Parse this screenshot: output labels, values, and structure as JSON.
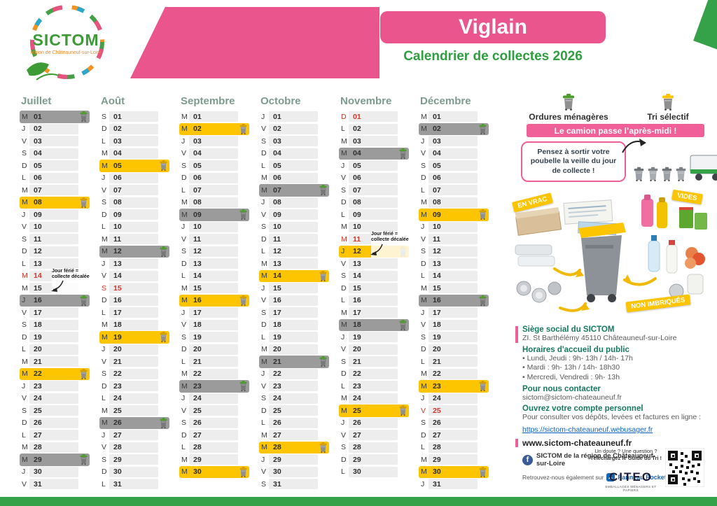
{
  "header": {
    "logo_title": "SICTOM",
    "logo_subtitle": "région de Châteauneuf-sur-Loire",
    "commune": "Viglain",
    "subtitle": "Calendrier de collectes 2026"
  },
  "legend": {
    "gray_label": "Ordures ménagères",
    "yellow_label": "Tri sélectif",
    "banner": "Le camion passe l’après-midi !",
    "reminder": "Pensez à sortir votre poubelle la veille du jour de collecte !"
  },
  "illustration": {
    "badges": [
      "EN VRAC",
      "VIDES",
      "NON IMBRIQUÉS"
    ]
  },
  "note_text": "Jour férié = collecte décalée",
  "contact": {
    "hq_title": "Siège social du SICTOM",
    "hq_address": "ZI. St Barthélémy 45110 Châteauneuf-sur-Loire",
    "hours_title": "Horaires d'accueil du public",
    "hours": [
      "• Lundi, Jeudi : 9h- 13h / 14h- 17h",
      "• Mardi : 9h- 13h / 14h- 18h30",
      "• Mercredi, Vendredi : 9h- 13h"
    ],
    "contact_title": "Pour nous contacter",
    "email": "sictom@sictom-chateauneuf.fr",
    "account_title": "Ouvrez votre compte personnel",
    "account_text": "Pour consulter vos dépôts, levées et factures en ligne :",
    "account_url": "https://sictom-chateauneuf.webusager.fr"
  },
  "footer": {
    "website": "www.sictom-chateauneuf.fr",
    "facebook": "SICTOM de la région de Châteauneuf-sur-Loire",
    "also_on": "Retrouvez-nous également sur",
    "panneau": "Panneau Pocket",
    "doubt": "Un doute ? Une question ?",
    "download": "Téléchargez le Guide du Tri !",
    "citeo": "CITEO",
    "citeo_sub": "EMBALLAGES MÉNAGERS ET PAPIERS"
  },
  "colors": {
    "pink": "#e9558c",
    "green": "#2f9e3f",
    "yellow": "#fdc400",
    "gray_highlight": "#9b9b9b",
    "light_row": "#ededed",
    "holiday_red": "#d63426",
    "bottom_green": "#35a24a"
  },
  "months": [
    {
      "name": "Juillet",
      "note_row": 13,
      "days": [
        [
          "M",
          "01",
          "g"
        ],
        [
          "J",
          "02",
          ""
        ],
        [
          "V",
          "03",
          ""
        ],
        [
          "S",
          "04",
          ""
        ],
        [
          "D",
          "05",
          ""
        ],
        [
          "L",
          "06",
          ""
        ],
        [
          "M",
          "07",
          ""
        ],
        [
          "M",
          "08",
          "y"
        ],
        [
          "J",
          "09",
          ""
        ],
        [
          "V",
          "10",
          ""
        ],
        [
          "S",
          "11",
          ""
        ],
        [
          "D",
          "12",
          ""
        ],
        [
          "L",
          "13",
          ""
        ],
        [
          "M",
          "14",
          "r"
        ],
        [
          "M",
          "15",
          ""
        ],
        [
          "J",
          "16",
          "g"
        ],
        [
          "V",
          "17",
          ""
        ],
        [
          "S",
          "18",
          ""
        ],
        [
          "D",
          "19",
          ""
        ],
        [
          "L",
          "20",
          ""
        ],
        [
          "M",
          "21",
          ""
        ],
        [
          "M",
          "22",
          "y"
        ],
        [
          "J",
          "23",
          ""
        ],
        [
          "V",
          "24",
          ""
        ],
        [
          "S",
          "25",
          ""
        ],
        [
          "D",
          "26",
          ""
        ],
        [
          "L",
          "27",
          ""
        ],
        [
          "M",
          "28",
          ""
        ],
        [
          "M",
          "29",
          "g"
        ],
        [
          "J",
          "30",
          ""
        ],
        [
          "V",
          "31",
          ""
        ]
      ]
    },
    {
      "name": "Août",
      "days": [
        [
          "S",
          "01",
          ""
        ],
        [
          "D",
          "02",
          ""
        ],
        [
          "L",
          "03",
          ""
        ],
        [
          "M",
          "04",
          ""
        ],
        [
          "M",
          "05",
          "y"
        ],
        [
          "J",
          "06",
          ""
        ],
        [
          "V",
          "07",
          ""
        ],
        [
          "S",
          "08",
          ""
        ],
        [
          "D",
          "09",
          ""
        ],
        [
          "L",
          "10",
          ""
        ],
        [
          "M",
          "11",
          ""
        ],
        [
          "M",
          "12",
          "g"
        ],
        [
          "J",
          "13",
          ""
        ],
        [
          "V",
          "14",
          ""
        ],
        [
          "S",
          "15",
          "r"
        ],
        [
          "D",
          "16",
          ""
        ],
        [
          "L",
          "17",
          ""
        ],
        [
          "M",
          "18",
          ""
        ],
        [
          "M",
          "19",
          "y"
        ],
        [
          "J",
          "20",
          ""
        ],
        [
          "V",
          "21",
          ""
        ],
        [
          "S",
          "22",
          ""
        ],
        [
          "D",
          "23",
          ""
        ],
        [
          "L",
          "24",
          ""
        ],
        [
          "M",
          "25",
          ""
        ],
        [
          "M",
          "26",
          "g"
        ],
        [
          "J",
          "27",
          ""
        ],
        [
          "V",
          "28",
          ""
        ],
        [
          "S",
          "29",
          ""
        ],
        [
          "D",
          "30",
          ""
        ],
        [
          "L",
          "31",
          ""
        ]
      ]
    },
    {
      "name": "Septembre",
      "days": [
        [
          "M",
          "01",
          ""
        ],
        [
          "M",
          "02",
          "y"
        ],
        [
          "J",
          "03",
          ""
        ],
        [
          "V",
          "04",
          ""
        ],
        [
          "S",
          "05",
          ""
        ],
        [
          "D",
          "06",
          ""
        ],
        [
          "L",
          "07",
          ""
        ],
        [
          "M",
          "08",
          ""
        ],
        [
          "M",
          "09",
          "g"
        ],
        [
          "J",
          "10",
          ""
        ],
        [
          "V",
          "11",
          ""
        ],
        [
          "S",
          "12",
          ""
        ],
        [
          "D",
          "13",
          ""
        ],
        [
          "L",
          "14",
          ""
        ],
        [
          "M",
          "15",
          ""
        ],
        [
          "M",
          "16",
          "y"
        ],
        [
          "J",
          "17",
          ""
        ],
        [
          "V",
          "18",
          ""
        ],
        [
          "S",
          "19",
          ""
        ],
        [
          "D",
          "20",
          ""
        ],
        [
          "L",
          "21",
          ""
        ],
        [
          "M",
          "22",
          ""
        ],
        [
          "M",
          "23",
          "g"
        ],
        [
          "J",
          "24",
          ""
        ],
        [
          "V",
          "25",
          ""
        ],
        [
          "S",
          "26",
          ""
        ],
        [
          "D",
          "27",
          ""
        ],
        [
          "L",
          "28",
          ""
        ],
        [
          "M",
          "29",
          ""
        ],
        [
          "M",
          "30",
          "y"
        ]
      ]
    },
    {
      "name": "Octobre",
      "days": [
        [
          "J",
          "01",
          ""
        ],
        [
          "V",
          "02",
          ""
        ],
        [
          "S",
          "03",
          ""
        ],
        [
          "D",
          "04",
          ""
        ],
        [
          "L",
          "05",
          ""
        ],
        [
          "M",
          "06",
          ""
        ],
        [
          "M",
          "07",
          "g"
        ],
        [
          "J",
          "08",
          ""
        ],
        [
          "V",
          "09",
          ""
        ],
        [
          "S",
          "10",
          ""
        ],
        [
          "D",
          "11",
          ""
        ],
        [
          "L",
          "12",
          ""
        ],
        [
          "M",
          "13",
          ""
        ],
        [
          "M",
          "14",
          "y"
        ],
        [
          "J",
          "15",
          ""
        ],
        [
          "V",
          "16",
          ""
        ],
        [
          "S",
          "17",
          ""
        ],
        [
          "D",
          "18",
          ""
        ],
        [
          "L",
          "19",
          ""
        ],
        [
          "M",
          "20",
          ""
        ],
        [
          "M",
          "21",
          "g"
        ],
        [
          "J",
          "22",
          ""
        ],
        [
          "V",
          "23",
          ""
        ],
        [
          "S",
          "24",
          ""
        ],
        [
          "D",
          "25",
          ""
        ],
        [
          "L",
          "26",
          ""
        ],
        [
          "M",
          "27",
          ""
        ],
        [
          "M",
          "28",
          "y"
        ],
        [
          "J",
          "29",
          ""
        ],
        [
          "V",
          "30",
          ""
        ],
        [
          "S",
          "31",
          ""
        ]
      ]
    },
    {
      "name": "Novembre",
      "note_row": 10,
      "days": [
        [
          "D",
          "01",
          "r"
        ],
        [
          "L",
          "02",
          ""
        ],
        [
          "M",
          "03",
          ""
        ],
        [
          "M",
          "04",
          "g"
        ],
        [
          "J",
          "05",
          ""
        ],
        [
          "V",
          "06",
          ""
        ],
        [
          "S",
          "07",
          ""
        ],
        [
          "D",
          "08",
          ""
        ],
        [
          "L",
          "09",
          ""
        ],
        [
          "M",
          "10",
          ""
        ],
        [
          "M",
          "11",
          "r"
        ],
        [
          "J",
          "12",
          "y"
        ],
        [
          "V",
          "13",
          ""
        ],
        [
          "S",
          "14",
          ""
        ],
        [
          "D",
          "15",
          ""
        ],
        [
          "L",
          "16",
          ""
        ],
        [
          "M",
          "17",
          ""
        ],
        [
          "M",
          "18",
          "g"
        ],
        [
          "J",
          "19",
          ""
        ],
        [
          "V",
          "20",
          ""
        ],
        [
          "S",
          "21",
          ""
        ],
        [
          "D",
          "22",
          ""
        ],
        [
          "L",
          "23",
          ""
        ],
        [
          "M",
          "24",
          ""
        ],
        [
          "M",
          "25",
          "y"
        ],
        [
          "J",
          "26",
          ""
        ],
        [
          "V",
          "27",
          ""
        ],
        [
          "S",
          "28",
          ""
        ],
        [
          "D",
          "29",
          ""
        ],
        [
          "L",
          "30",
          ""
        ]
      ]
    },
    {
      "name": "Décembre",
      "days": [
        [
          "M",
          "01",
          ""
        ],
        [
          "M",
          "02",
          "g"
        ],
        [
          "J",
          "03",
          ""
        ],
        [
          "V",
          "04",
          ""
        ],
        [
          "S",
          "05",
          ""
        ],
        [
          "D",
          "06",
          ""
        ],
        [
          "L",
          "07",
          ""
        ],
        [
          "M",
          "08",
          ""
        ],
        [
          "M",
          "09",
          "y"
        ],
        [
          "J",
          "10",
          ""
        ],
        [
          "V",
          "11",
          ""
        ],
        [
          "S",
          "12",
          ""
        ],
        [
          "D",
          "13",
          ""
        ],
        [
          "L",
          "14",
          ""
        ],
        [
          "M",
          "15",
          ""
        ],
        [
          "M",
          "16",
          "g"
        ],
        [
          "J",
          "17",
          ""
        ],
        [
          "V",
          "18",
          ""
        ],
        [
          "S",
          "19",
          ""
        ],
        [
          "D",
          "20",
          ""
        ],
        [
          "L",
          "21",
          ""
        ],
        [
          "M",
          "22",
          ""
        ],
        [
          "M",
          "23",
          "y"
        ],
        [
          "J",
          "24",
          ""
        ],
        [
          "V",
          "25",
          "r"
        ],
        [
          "S",
          "26",
          ""
        ],
        [
          "D",
          "27",
          ""
        ],
        [
          "L",
          "28",
          ""
        ],
        [
          "M",
          "29",
          ""
        ],
        [
          "M",
          "30",
          "y"
        ],
        [
          "J",
          "31",
          ""
        ]
      ]
    }
  ]
}
